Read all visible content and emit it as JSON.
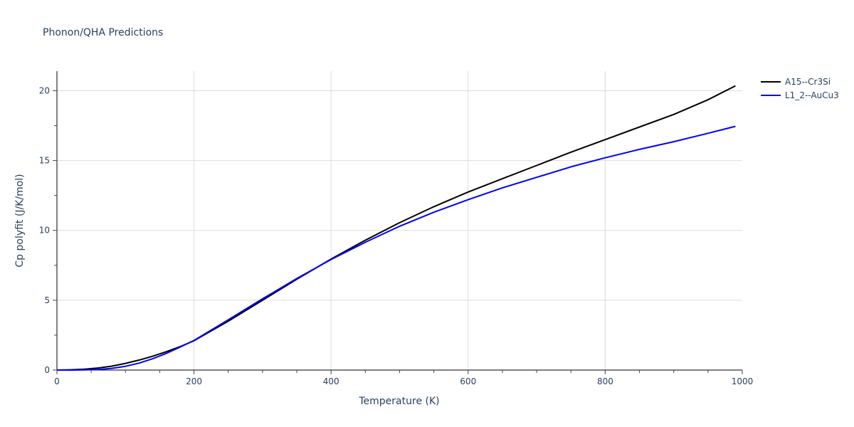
{
  "chart_data": {
    "type": "line",
    "title": "Phonon/QHA Predictions",
    "xlabel": "Temperature (K)",
    "ylabel": "Cp polyfit (J/K/mol)",
    "xlim": [
      0,
      1000
    ],
    "ylim": [
      0,
      21.4
    ],
    "xticks": [
      0,
      200,
      400,
      600,
      800,
      1000
    ],
    "yticks": [
      0,
      5,
      10,
      15,
      20
    ],
    "grid": true,
    "legend_position": "top-right",
    "series": [
      {
        "name": "A15--Cr3Si",
        "color": "#000000",
        "x": [
          0,
          20,
          40,
          60,
          80,
          100,
          120,
          140,
          160,
          180,
          200,
          250,
          300,
          350,
          400,
          450,
          500,
          550,
          600,
          650,
          700,
          750,
          800,
          850,
          900,
          950,
          990
        ],
        "y": [
          0,
          0.02,
          0.06,
          0.15,
          0.28,
          0.48,
          0.72,
          1.0,
          1.32,
          1.68,
          2.1,
          3.5,
          5.0,
          6.5,
          7.95,
          9.3,
          10.55,
          11.7,
          12.75,
          13.7,
          14.65,
          15.6,
          16.5,
          17.4,
          18.3,
          19.35,
          20.35
        ]
      },
      {
        "name": "L1_2--AuCu3",
        "color": "#0000ff",
        "x": [
          0,
          20,
          40,
          60,
          80,
          100,
          120,
          140,
          160,
          180,
          200,
          250,
          300,
          350,
          400,
          450,
          500,
          550,
          600,
          650,
          700,
          750,
          800,
          850,
          900,
          950,
          990
        ],
        "y": [
          0,
          0,
          0.01,
          0.04,
          0.12,
          0.27,
          0.5,
          0.82,
          1.2,
          1.65,
          2.12,
          3.6,
          5.1,
          6.55,
          7.92,
          9.15,
          10.3,
          11.3,
          12.2,
          13.05,
          13.8,
          14.55,
          15.2,
          15.8,
          16.35,
          16.95,
          17.45
        ]
      }
    ]
  }
}
